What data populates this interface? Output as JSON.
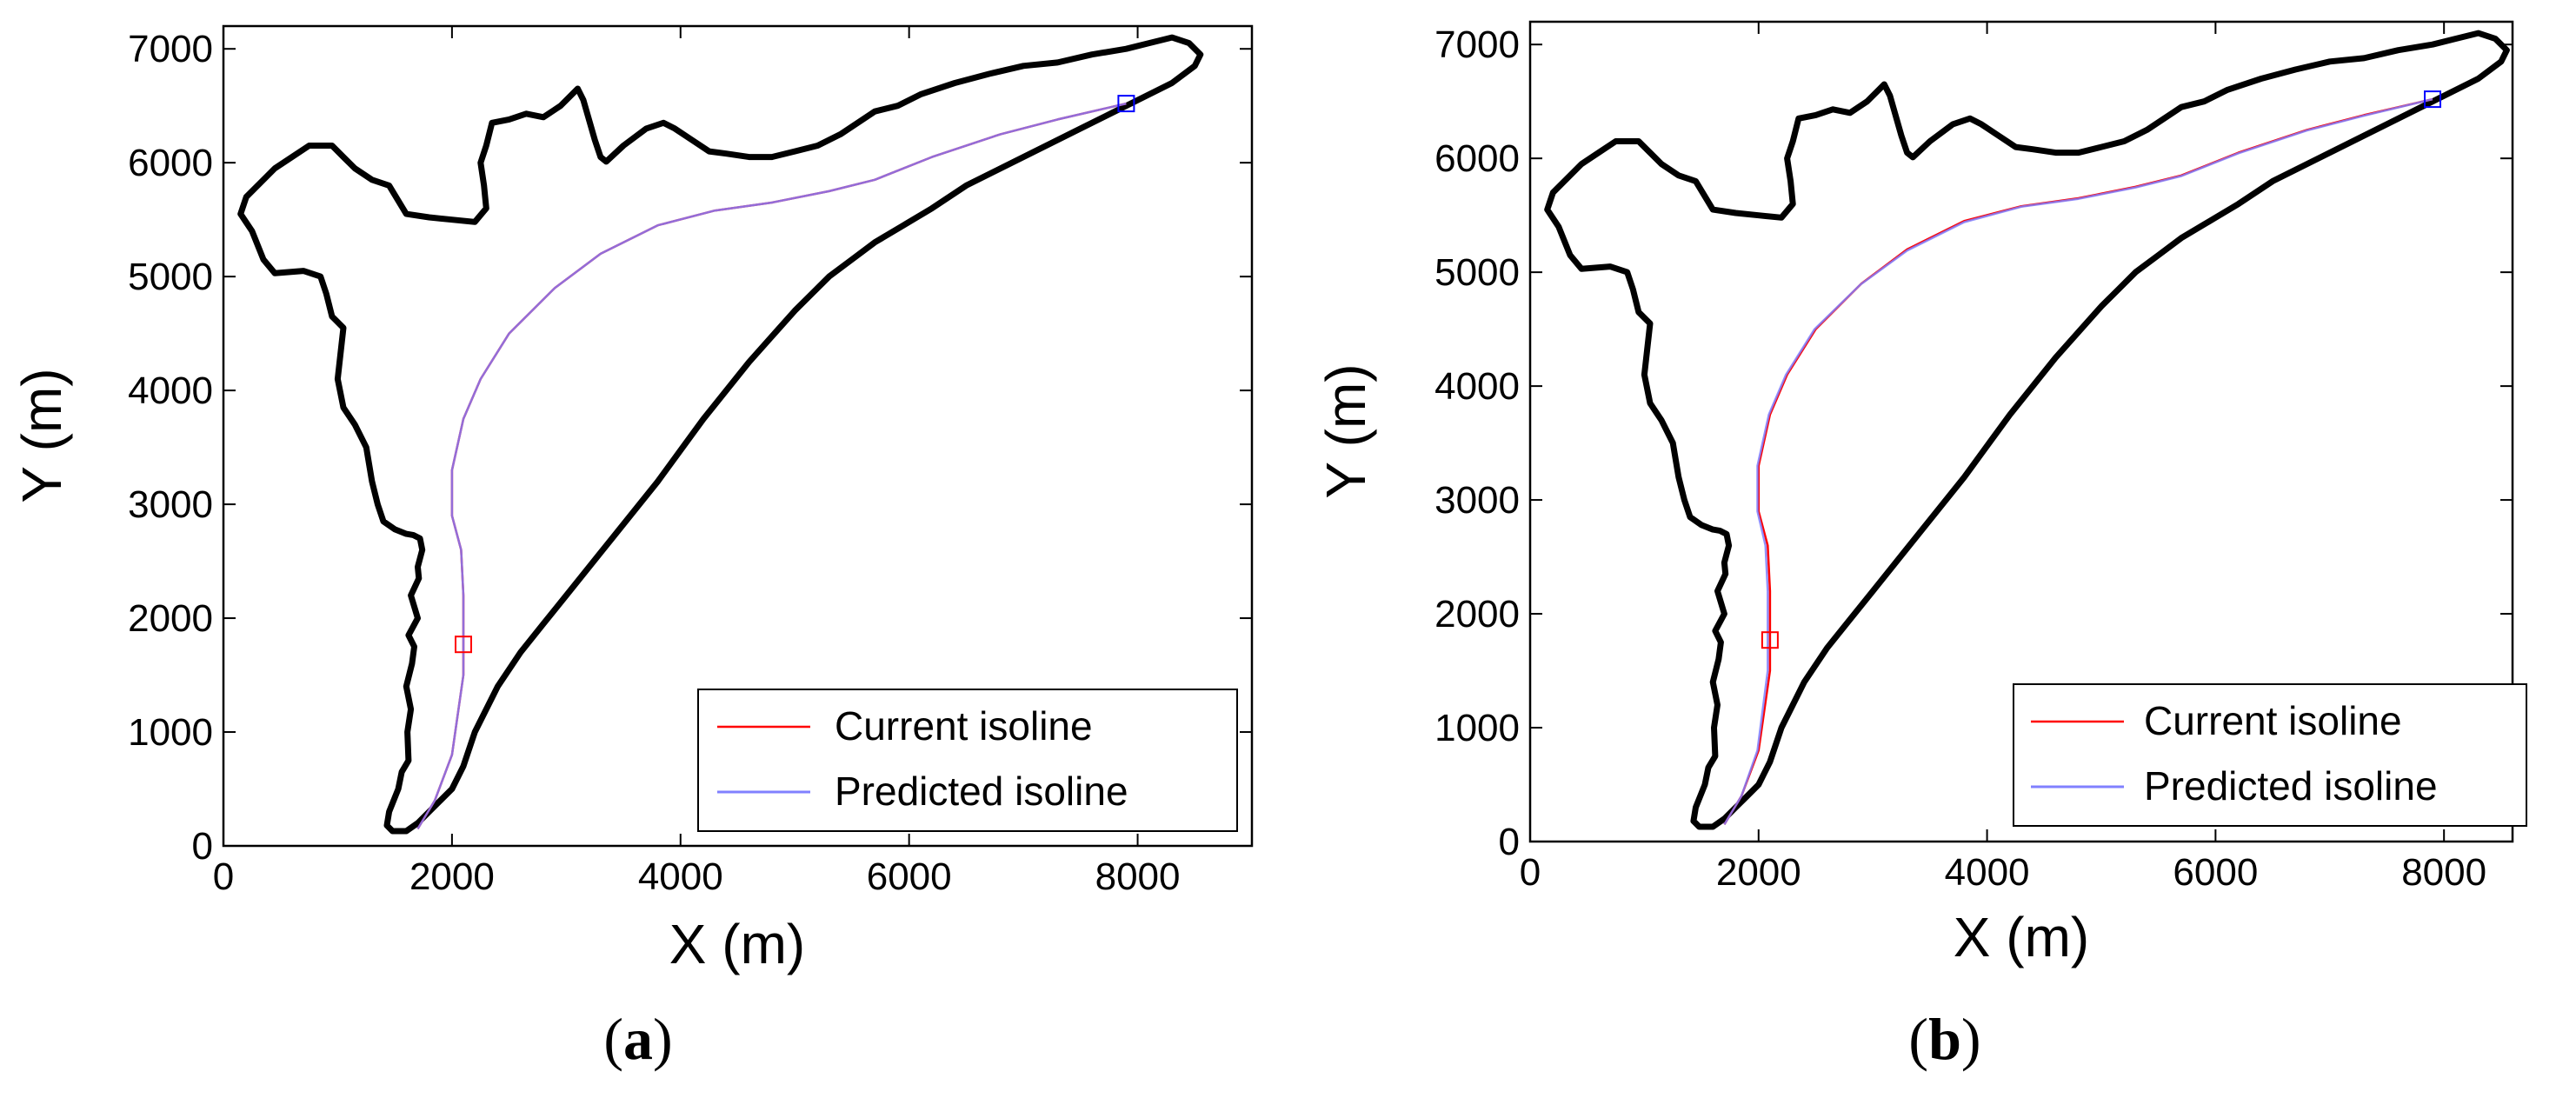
{
  "chart_data": [
    {
      "type": "line",
      "panel_label": "a",
      "xlabel": "X (m)",
      "ylabel": "Y (m)",
      "xlim": [
        0,
        9000
      ],
      "ylim": [
        0,
        7200
      ],
      "xticks": [
        "0",
        "2000",
        "4000",
        "6000",
        "8000"
      ],
      "xtick_values": [
        0,
        2000,
        4000,
        6000,
        8000
      ],
      "yticks": [
        "0",
        "1000",
        "2000",
        "3000",
        "4000",
        "5000",
        "6000",
        "7000"
      ],
      "ytick_values": [
        0,
        1000,
        2000,
        3000,
        4000,
        5000,
        6000,
        7000
      ],
      "legend_position": "bottom-right",
      "boundary_color": "#000000",
      "boundary": {
        "x": [
          1560,
          1480,
          1430,
          1450,
          1530,
          1560,
          1620,
          1610,
          1640,
          1600,
          1650,
          1670,
          1620,
          1700,
          1640,
          1710,
          1700,
          1740,
          1720,
          1660,
          1600,
          1500,
          1400,
          1350,
          1300,
          1250,
          1150,
          1050,
          1000,
          1050,
          950,
          900,
          850,
          700,
          450,
          350,
          250,
          150,
          200,
          350,
          450,
          600,
          750,
          950,
          1050,
          1150,
          1300,
          1450,
          1600,
          1800,
          2000,
          2200,
          2300,
          2280,
          2250,
          2300,
          2350,
          2500,
          2650,
          2800,
          2950,
          3100,
          3150,
          3250,
          3300,
          3350,
          3500,
          3700,
          3850,
          3950,
          4100,
          4250,
          4400,
          4600,
          4800,
          5000,
          5200,
          5400,
          5700,
          5900,
          6100,
          6400,
          6700,
          7000,
          7300,
          7600,
          7900,
          8100,
          8300,
          8450,
          8550,
          8500,
          8300,
          7900,
          7500,
          7000,
          6500,
          6200,
          5950,
          5700,
          5500,
          5300,
          5150,
          5000,
          4600,
          4200,
          3800,
          3400,
          3000,
          2800,
          2600,
          2400,
          2200,
          2100,
          2000,
          1900,
          1800,
          1700,
          1600,
          1560
        ],
        "y": [
          130,
          130,
          180,
          300,
          500,
          650,
          750,
          1000,
          1200,
          1400,
          1600,
          1750,
          1850,
          2000,
          2200,
          2350,
          2450,
          2600,
          2700,
          2730,
          2740,
          2780,
          2850,
          3000,
          3200,
          3500,
          3700,
          3850,
          4100,
          4550,
          4650,
          4850,
          5000,
          5050,
          5030,
          5150,
          5400,
          5550,
          5700,
          5850,
          5950,
          6050,
          6150,
          6150,
          6050,
          5950,
          5850,
          5800,
          5550,
          5520,
          5500,
          5480,
          5600,
          5800,
          6000,
          6150,
          6350,
          6380,
          6430,
          6400,
          6500,
          6650,
          6550,
          6200,
          6050,
          6010,
          6150,
          6300,
          6350,
          6300,
          6200,
          6100,
          6080,
          6050,
          6050,
          6100,
          6150,
          6250,
          6450,
          6500,
          6600,
          6700,
          6780,
          6850,
          6880,
          6950,
          7000,
          7050,
          7100,
          7050,
          6950,
          6850,
          6700,
          6500,
          6300,
          6050,
          5800,
          5600,
          5450,
          5300,
          5150,
          5000,
          4850,
          4700,
          4250,
          3750,
          3200,
          2700,
          2200,
          1950,
          1700,
          1400,
          1000,
          700,
          500,
          400,
          300,
          200,
          130,
          130
        ]
      },
      "series": [
        {
          "name": "Current isoline",
          "color": "#ff0000",
          "x": [
            1700,
            1850,
            2000,
            2100,
            2100,
            2080,
            2000,
            2000,
            2100,
            2250,
            2500,
            2900,
            3300,
            3800,
            4300,
            4800,
            5300,
            5700,
            6200,
            6800,
            7300,
            7900
          ],
          "y": [
            150,
            400,
            800,
            1500,
            2200,
            2600,
            2900,
            3300,
            3750,
            4100,
            4500,
            4900,
            5200,
            5450,
            5580,
            5650,
            5750,
            5850,
            6050,
            6250,
            6380,
            6520
          ]
        },
        {
          "name": "Predicted isoline",
          "color": "#8080ff",
          "x": [
            1700,
            1850,
            2000,
            2100,
            2100,
            2080,
            2000,
            2000,
            2100,
            2250,
            2500,
            2900,
            3300,
            3800,
            4300,
            4800,
            5300,
            5700,
            6200,
            6800,
            7300,
            7900
          ],
          "y": [
            150,
            400,
            800,
            1500,
            2200,
            2600,
            2900,
            3300,
            3750,
            4100,
            4500,
            4900,
            5200,
            5450,
            5580,
            5650,
            5750,
            5850,
            6050,
            6250,
            6380,
            6520
          ]
        }
      ],
      "markers": [
        {
          "x": 2100,
          "y": 1770,
          "color": "#ff0000",
          "shape": "square"
        },
        {
          "x": 7900,
          "y": 6520,
          "color": "#0000ff",
          "shape": "square"
        }
      ]
    },
    {
      "type": "line",
      "panel_label": "b",
      "xlabel": "X (m)",
      "ylabel": "Y (m)",
      "xlim": [
        0,
        8600
      ],
      "ylim": [
        0,
        7200
      ],
      "xticks": [
        "0",
        "2000",
        "4000",
        "6000",
        "8000"
      ],
      "xtick_values": [
        0,
        2000,
        4000,
        6000,
        8000
      ],
      "yticks": [
        "0",
        "1000",
        "2000",
        "3000",
        "4000",
        "5000",
        "6000",
        "7000"
      ],
      "ytick_values": [
        0,
        1000,
        2000,
        3000,
        4000,
        5000,
        6000,
        7000
      ],
      "legend_position": "bottom-right",
      "boundary_color": "#000000",
      "boundary": {
        "x": [
          1560,
          1480,
          1430,
          1450,
          1530,
          1560,
          1620,
          1610,
          1640,
          1600,
          1650,
          1670,
          1620,
          1700,
          1640,
          1710,
          1700,
          1740,
          1720,
          1660,
          1600,
          1500,
          1400,
          1350,
          1300,
          1250,
          1150,
          1050,
          1000,
          1050,
          950,
          900,
          850,
          700,
          450,
          350,
          250,
          150,
          200,
          350,
          450,
          600,
          750,
          950,
          1050,
          1150,
          1300,
          1450,
          1600,
          1800,
          2000,
          2200,
          2300,
          2280,
          2250,
          2300,
          2350,
          2500,
          2650,
          2800,
          2950,
          3100,
          3150,
          3250,
          3300,
          3350,
          3500,
          3700,
          3850,
          3950,
          4100,
          4250,
          4400,
          4600,
          4800,
          5000,
          5200,
          5400,
          5700,
          5900,
          6100,
          6400,
          6700,
          7000,
          7300,
          7600,
          7900,
          8100,
          8300,
          8450,
          8550,
          8500,
          8300,
          7900,
          7500,
          7000,
          6500,
          6200,
          5950,
          5700,
          5500,
          5300,
          5150,
          5000,
          4600,
          4200,
          3800,
          3400,
          3000,
          2800,
          2600,
          2400,
          2200,
          2100,
          2000,
          1900,
          1800,
          1700,
          1600,
          1560
        ],
        "y": [
          130,
          130,
          180,
          300,
          500,
          650,
          750,
          1000,
          1200,
          1400,
          1600,
          1750,
          1850,
          2000,
          2200,
          2350,
          2450,
          2600,
          2700,
          2730,
          2740,
          2780,
          2850,
          3000,
          3200,
          3500,
          3700,
          3850,
          4100,
          4550,
          4650,
          4850,
          5000,
          5050,
          5030,
          5150,
          5400,
          5550,
          5700,
          5850,
          5950,
          6050,
          6150,
          6150,
          6050,
          5950,
          5850,
          5800,
          5550,
          5520,
          5500,
          5480,
          5600,
          5800,
          6000,
          6150,
          6350,
          6380,
          6430,
          6400,
          6500,
          6650,
          6550,
          6200,
          6050,
          6010,
          6150,
          6300,
          6350,
          6300,
          6200,
          6100,
          6080,
          6050,
          6050,
          6100,
          6150,
          6250,
          6450,
          6500,
          6600,
          6700,
          6780,
          6850,
          6880,
          6950,
          7000,
          7050,
          7100,
          7050,
          6950,
          6850,
          6700,
          6500,
          6300,
          6050,
          5800,
          5600,
          5450,
          5300,
          5150,
          5000,
          4850,
          4700,
          4250,
          3750,
          3200,
          2700,
          2200,
          1950,
          1700,
          1400,
          1000,
          700,
          500,
          400,
          300,
          200,
          130,
          130
        ]
      },
      "series": [
        {
          "name": "Current isoline",
          "color": "#ff0000",
          "x": [
            1700,
            1850,
            2000,
            2100,
            2100,
            2080,
            2000,
            2000,
            2100,
            2250,
            2500,
            2900,
            3300,
            3800,
            4300,
            4800,
            5300,
            5700,
            6200,
            6800,
            7300,
            7900
          ],
          "y": [
            150,
            400,
            800,
            1500,
            2200,
            2600,
            2900,
            3300,
            3750,
            4100,
            4500,
            4900,
            5200,
            5450,
            5580,
            5650,
            5750,
            5850,
            6050,
            6250,
            6380,
            6520
          ]
        },
        {
          "name": "Predicted isoline",
          "color": "#8080ff",
          "x": [
            1700,
            1850,
            1990,
            2080,
            2080,
            2060,
            1990,
            1990,
            2090,
            2240,
            2490,
            2890,
            3300,
            3800,
            4300,
            4800,
            5300,
            5700,
            6200,
            6800,
            7300,
            7900
          ],
          "y": [
            150,
            400,
            800,
            1500,
            2200,
            2600,
            2900,
            3300,
            3750,
            4100,
            4500,
            4890,
            5190,
            5440,
            5575,
            5645,
            5745,
            5845,
            6045,
            6245,
            6375,
            6520
          ]
        }
      ],
      "markers": [
        {
          "x": 2100,
          "y": 1770,
          "color": "#ff0000",
          "shape": "square"
        },
        {
          "x": 7900,
          "y": 6520,
          "color": "#0000ff",
          "shape": "square"
        }
      ]
    }
  ]
}
